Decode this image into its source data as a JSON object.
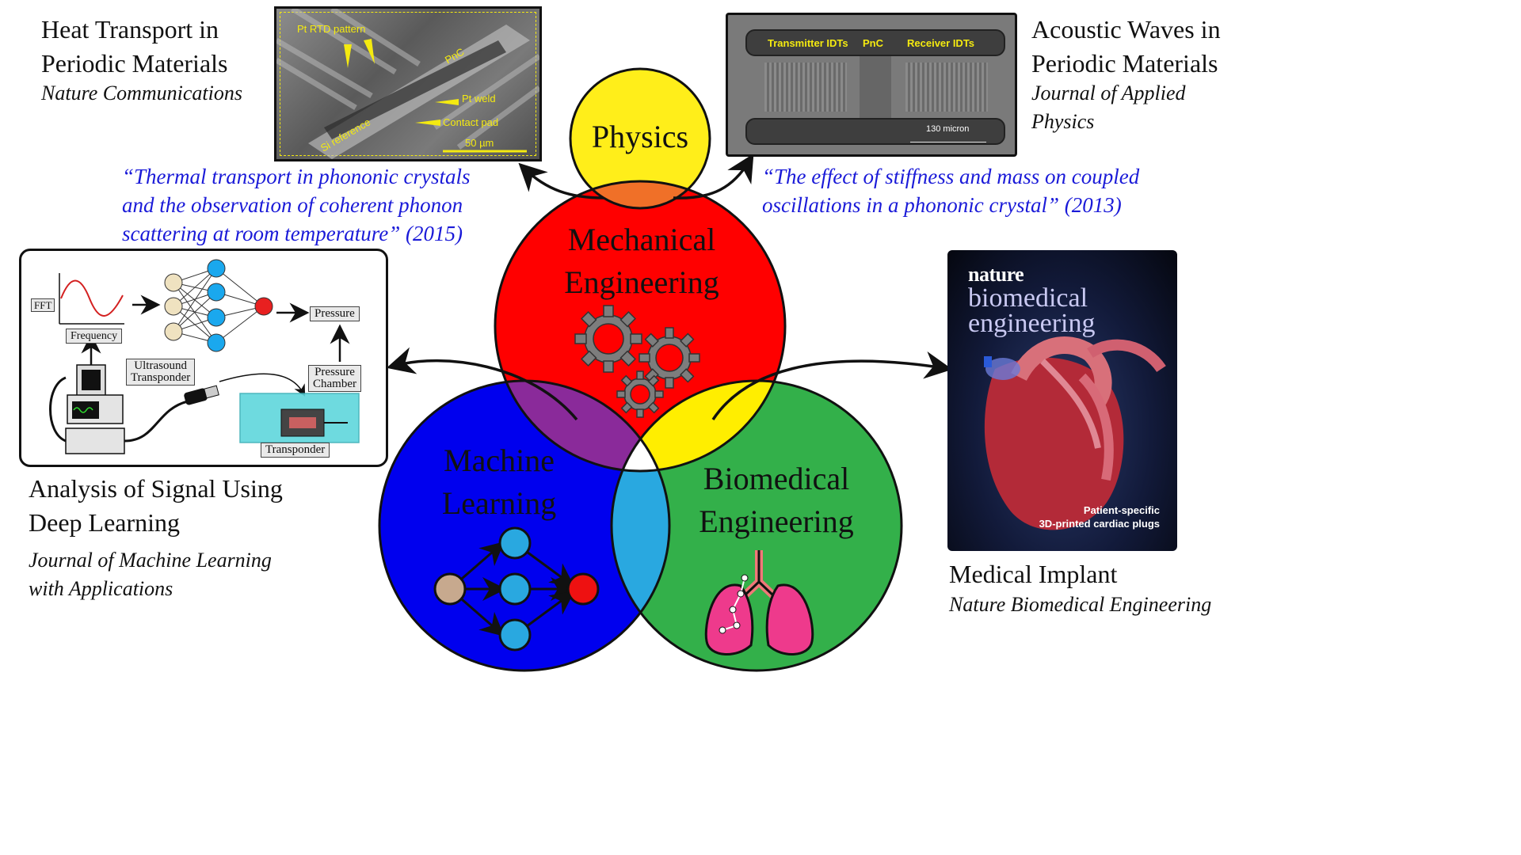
{
  "colors": {
    "physics": "#ffee1a",
    "mechanical": "#ff0000",
    "machine_learning": "#0000ee",
    "biomedical": "#33b04a",
    "quote": "#1a1ad8"
  },
  "venn": {
    "physics": "Physics",
    "mechanical": [
      "Mechanical",
      "Engineering"
    ],
    "machine_learning": [
      "Machine",
      "Learning"
    ],
    "biomedical": [
      "Biomedical",
      "Engineering"
    ]
  },
  "heat": {
    "title": [
      "Heat Transport in",
      "Periodic Materials"
    ],
    "journal": "Nature Communications",
    "quote": [
      "“Thermal transport in phononic  crystals",
      "and the observation of coherent phonon",
      "scattering at room temperature” (2015)"
    ],
    "image_labels": {
      "rtd": "Pt RTD pattern",
      "pnc": "PnC",
      "weld": "Pt weld",
      "pad": "Contact pad",
      "siref": "Si reference",
      "scale": "50 µm"
    }
  },
  "acoustic": {
    "title": [
      "Acoustic Waves in",
      "Periodic Materials"
    ],
    "journal": [
      "Journal of Applied",
      "Physics"
    ],
    "quote": [
      "“The effect of stiffness and mass on coupled",
      "oscillations in a phononic crystal” (2013)"
    ],
    "image_labels": {
      "tx": "Transmitter IDTs",
      "pnc": "PnC",
      "rx": "Receiver IDTs",
      "scale": "130  micron"
    }
  },
  "signal": {
    "title": [
      "Analysis of Signal Using",
      "Deep Learning"
    ],
    "journal": [
      "Journal of Machine Learning",
      "with Applications"
    ],
    "diagram_labels": {
      "fft": "FFT",
      "frequency": "Frequency",
      "pressure": "Pressure",
      "ultrasound": [
        "Ultrasound",
        "Transponder"
      ],
      "chamber": [
        "Pressure",
        "Chamber"
      ],
      "transponder": "Transponder"
    }
  },
  "implant": {
    "title": "Medical Implant",
    "journal": "Nature Biomedical Engineering",
    "cover": {
      "masthead": "nature",
      "line1": "biomedical",
      "line2": "engineering",
      "caption1": "Patient-specific",
      "caption2": "3D-printed cardiac plugs"
    }
  }
}
